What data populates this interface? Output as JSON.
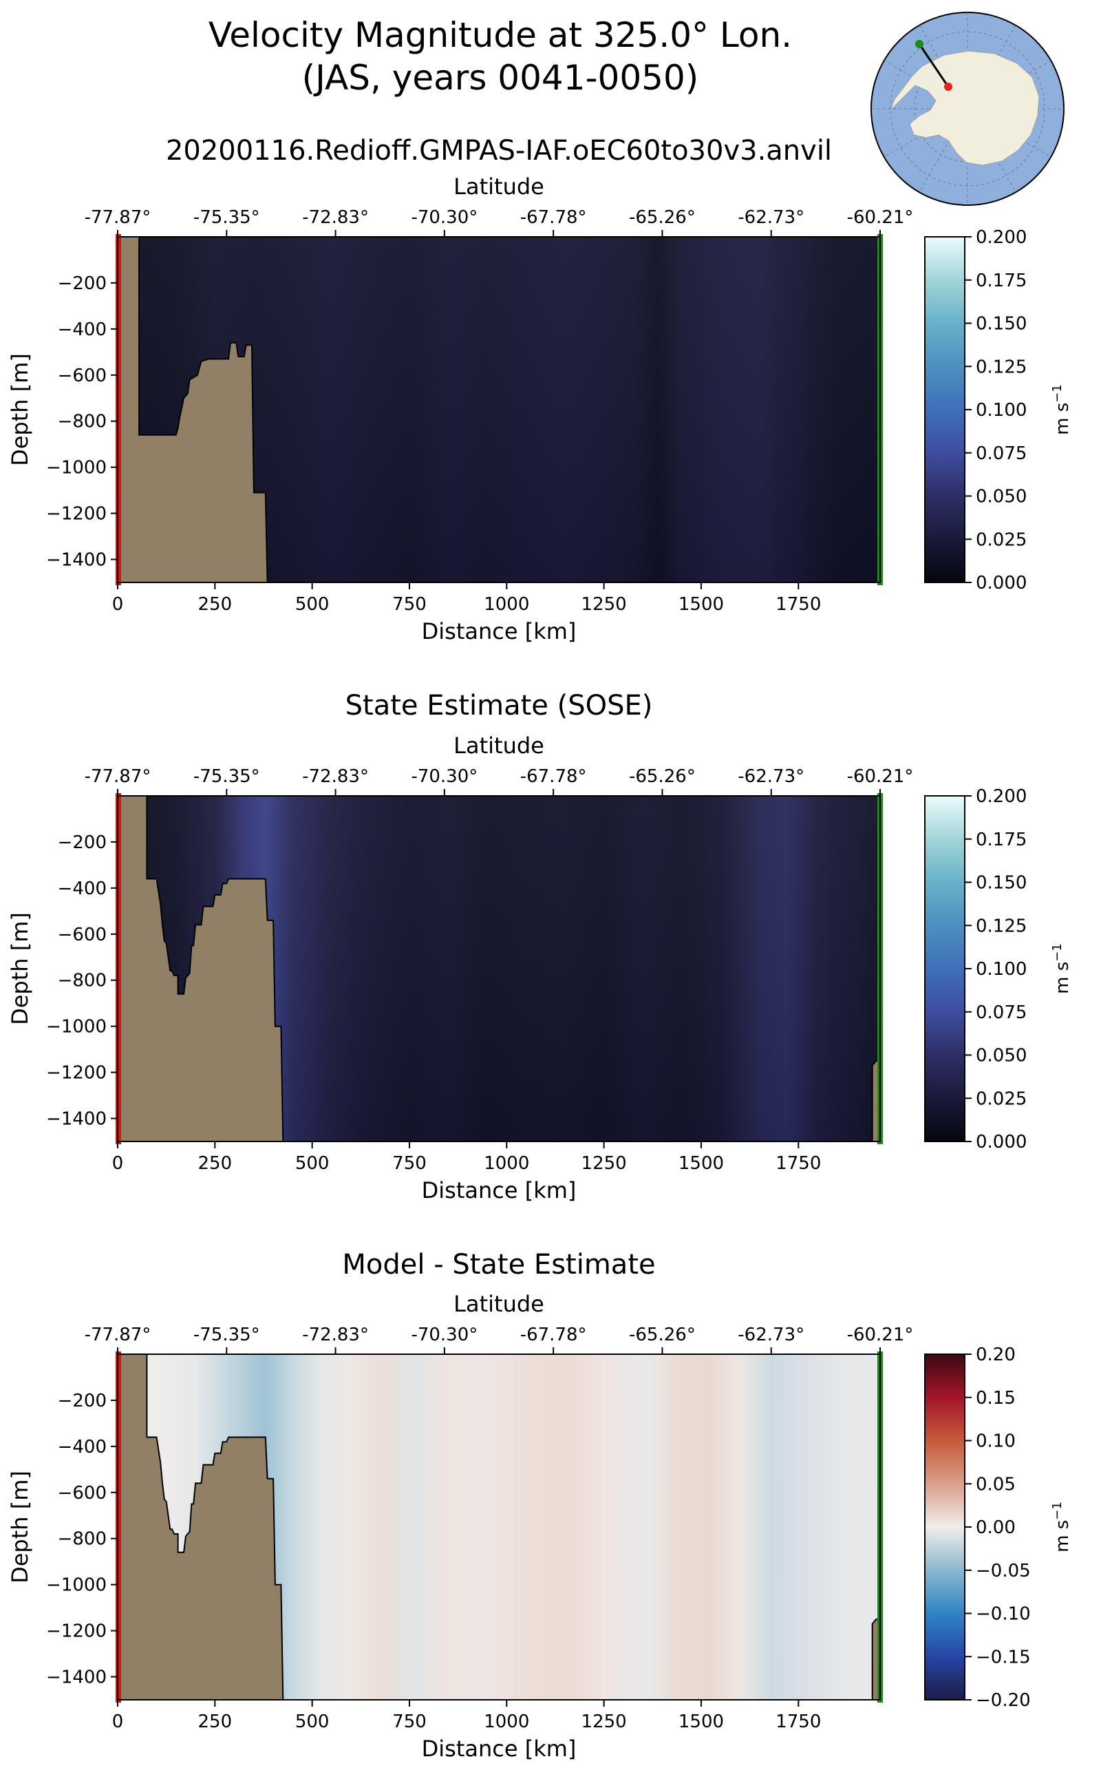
{
  "figure": {
    "title_line1": "Velocity Magnitude at 325.0° Lon.",
    "title_line2": "(JAS, years 0041-0050)"
  },
  "inset_map": {
    "description_colors": {
      "ocean": "#8fb0dd",
      "land": "#f1eede",
      "track": "#000000",
      "start": "#e8201e",
      "end": "#1a8a1a"
    }
  },
  "chart_data": [
    {
      "type": "heatmap",
      "title": "20200116.Redioff.GMPAS-IAF.oEC60to30v3.anvil",
      "xlabel": "Distance [km]",
      "ylabel": "Depth [m]",
      "top_xlabel": "Latitude",
      "xlim": [
        0,
        1960
      ],
      "ylim": [
        -1500,
        0
      ],
      "x_ticks": [
        0,
        250,
        500,
        750,
        1000,
        1250,
        1500,
        1750
      ],
      "y_ticks": [
        -200,
        -400,
        -600,
        -800,
        -1000,
        -1200,
        -1400
      ],
      "top_ticks": [
        "-77.87°",
        "-75.35°",
        "-72.83°",
        "-70.30°",
        "-67.78°",
        "-65.26°",
        "-62.73°",
        "-60.21°"
      ],
      "colorbar": {
        "label": "m s$^{-1}$",
        "min": 0.0,
        "max": 0.2,
        "ticks": [
          "0.000",
          "0.025",
          "0.050",
          "0.075",
          "0.100",
          "0.125",
          "0.150",
          "0.175",
          "0.200"
        ],
        "colormap": "ice"
      },
      "bathymetry": [
        [
          0,
          0
        ],
        [
          55,
          0
        ],
        [
          55,
          -860
        ],
        [
          150,
          -860
        ],
        [
          155,
          -830
        ],
        [
          160,
          -780
        ],
        [
          170,
          -700
        ],
        [
          180,
          -680
        ],
        [
          185,
          -620
        ],
        [
          205,
          -600
        ],
        [
          215,
          -540
        ],
        [
          235,
          -530
        ],
        [
          285,
          -530
        ],
        [
          290,
          -460
        ],
        [
          305,
          -460
        ],
        [
          310,
          -520
        ],
        [
          325,
          -520
        ],
        [
          330,
          -470
        ],
        [
          345,
          -470
        ],
        [
          350,
          -1110
        ],
        [
          380,
          -1110
        ],
        [
          385,
          -1500
        ],
        [
          0,
          -1500
        ]
      ],
      "field_columns": [
        {
          "x": 55,
          "v": 0.012
        },
        {
          "x": 150,
          "v": 0.014
        },
        {
          "x": 250,
          "v": 0.02
        },
        {
          "x": 350,
          "v": 0.018
        },
        {
          "x": 450,
          "v": 0.02
        },
        {
          "x": 550,
          "v": 0.024
        },
        {
          "x": 650,
          "v": 0.02
        },
        {
          "x": 750,
          "v": 0.018
        },
        {
          "x": 850,
          "v": 0.022
        },
        {
          "x": 950,
          "v": 0.02
        },
        {
          "x": 1050,
          "v": 0.023
        },
        {
          "x": 1150,
          "v": 0.025
        },
        {
          "x": 1250,
          "v": 0.022
        },
        {
          "x": 1330,
          "v": 0.02
        },
        {
          "x": 1390,
          "v": 0.012
        },
        {
          "x": 1450,
          "v": 0.024
        },
        {
          "x": 1550,
          "v": 0.028
        },
        {
          "x": 1650,
          "v": 0.03
        },
        {
          "x": 1750,
          "v": 0.022
        },
        {
          "x": 1850,
          "v": 0.014
        },
        {
          "x": 1960,
          "v": 0.012
        }
      ]
    },
    {
      "type": "heatmap",
      "title": "State Estimate (SOSE)",
      "xlabel": "Distance [km]",
      "ylabel": "Depth [m]",
      "top_xlabel": "Latitude",
      "xlim": [
        0,
        1960
      ],
      "ylim": [
        -1500,
        0
      ],
      "x_ticks": [
        0,
        250,
        500,
        750,
        1000,
        1250,
        1500,
        1750
      ],
      "y_ticks": [
        -200,
        -400,
        -600,
        -800,
        -1000,
        -1200,
        -1400
      ],
      "top_ticks": [
        "-77.87°",
        "-75.35°",
        "-72.83°",
        "-70.30°",
        "-67.78°",
        "-65.26°",
        "-62.73°",
        "-60.21°"
      ],
      "colorbar": {
        "label": "m s$^{-1}$",
        "min": 0.0,
        "max": 0.2,
        "ticks": [
          "0.000",
          "0.025",
          "0.050",
          "0.075",
          "0.100",
          "0.125",
          "0.150",
          "0.175",
          "0.200"
        ],
        "colormap": "ice"
      },
      "bathymetry": [
        [
          0,
          0
        ],
        [
          75,
          0
        ],
        [
          75,
          -360
        ],
        [
          100,
          -360
        ],
        [
          110,
          -470
        ],
        [
          115,
          -560
        ],
        [
          120,
          -630
        ],
        [
          125,
          -640
        ],
        [
          130,
          -700
        ],
        [
          135,
          -760
        ],
        [
          140,
          -760
        ],
        [
          145,
          -780
        ],
        [
          155,
          -780
        ],
        [
          155,
          -860
        ],
        [
          170,
          -860
        ],
        [
          175,
          -790
        ],
        [
          185,
          -770
        ],
        [
          190,
          -650
        ],
        [
          195,
          -650
        ],
        [
          200,
          -560
        ],
        [
          215,
          -560
        ],
        [
          220,
          -480
        ],
        [
          245,
          -480
        ],
        [
          250,
          -430
        ],
        [
          265,
          -430
        ],
        [
          270,
          -380
        ],
        [
          280,
          -380
        ],
        [
          285,
          -360
        ],
        [
          380,
          -360
        ],
        [
          385,
          -540
        ],
        [
          400,
          -540
        ],
        [
          405,
          -1000
        ],
        [
          420,
          -1000
        ],
        [
          425,
          -1500
        ],
        [
          0,
          -1500
        ]
      ],
      "bathymetry_right": [
        [
          1940,
          -1500
        ],
        [
          1940,
          -1170
        ],
        [
          1950,
          -1150
        ],
        [
          1960,
          -1150
        ],
        [
          1960,
          -1500
        ]
      ],
      "field_columns": [
        {
          "x": 75,
          "v": 0.012
        },
        {
          "x": 150,
          "v": 0.016
        },
        {
          "x": 250,
          "v": 0.03
        },
        {
          "x": 320,
          "v": 0.055
        },
        {
          "x": 380,
          "v": 0.065
        },
        {
          "x": 450,
          "v": 0.045
        },
        {
          "x": 550,
          "v": 0.03
        },
        {
          "x": 650,
          "v": 0.022
        },
        {
          "x": 750,
          "v": 0.018
        },
        {
          "x": 850,
          "v": 0.02
        },
        {
          "x": 950,
          "v": 0.015
        },
        {
          "x": 1050,
          "v": 0.017
        },
        {
          "x": 1150,
          "v": 0.018
        },
        {
          "x": 1250,
          "v": 0.015
        },
        {
          "x": 1350,
          "v": 0.02
        },
        {
          "x": 1450,
          "v": 0.017
        },
        {
          "x": 1550,
          "v": 0.022
        },
        {
          "x": 1650,
          "v": 0.04
        },
        {
          "x": 1720,
          "v": 0.045
        },
        {
          "x": 1800,
          "v": 0.028
        },
        {
          "x": 1900,
          "v": 0.02
        },
        {
          "x": 1960,
          "v": 0.015
        }
      ]
    },
    {
      "type": "heatmap",
      "title": "Model - State Estimate",
      "xlabel": "Distance [km]",
      "ylabel": "Depth [m]",
      "top_xlabel": "Latitude",
      "xlim": [
        0,
        1960
      ],
      "ylim": [
        -1500,
        0
      ],
      "x_ticks": [
        0,
        250,
        500,
        750,
        1000,
        1250,
        1500,
        1750
      ],
      "y_ticks": [
        -200,
        -400,
        -600,
        -800,
        -1000,
        -1200,
        -1400
      ],
      "top_ticks": [
        "-77.87°",
        "-75.35°",
        "-72.83°",
        "-70.30°",
        "-67.78°",
        "-65.26°",
        "-62.73°",
        "-60.21°"
      ],
      "colorbar": {
        "label": "m s$^{-1}$",
        "min": -0.2,
        "max": 0.2,
        "ticks": [
          "−0.20",
          "−0.15",
          "−0.10",
          "−0.05",
          "0.00",
          "0.05",
          "0.10",
          "0.15",
          "0.20"
        ],
        "colormap": "balance"
      },
      "bathymetry": [
        [
          0,
          0
        ],
        [
          75,
          0
        ],
        [
          75,
          -360
        ],
        [
          100,
          -360
        ],
        [
          110,
          -470
        ],
        [
          115,
          -560
        ],
        [
          120,
          -630
        ],
        [
          125,
          -640
        ],
        [
          130,
          -700
        ],
        [
          135,
          -760
        ],
        [
          140,
          -760
        ],
        [
          145,
          -780
        ],
        [
          155,
          -780
        ],
        [
          155,
          -860
        ],
        [
          170,
          -860
        ],
        [
          175,
          -790
        ],
        [
          185,
          -770
        ],
        [
          190,
          -650
        ],
        [
          195,
          -650
        ],
        [
          200,
          -560
        ],
        [
          215,
          -560
        ],
        [
          220,
          -480
        ],
        [
          245,
          -480
        ],
        [
          250,
          -430
        ],
        [
          265,
          -430
        ],
        [
          270,
          -380
        ],
        [
          280,
          -380
        ],
        [
          285,
          -360
        ],
        [
          380,
          -360
        ],
        [
          385,
          -540
        ],
        [
          400,
          -540
        ],
        [
          405,
          -1000
        ],
        [
          420,
          -1000
        ],
        [
          425,
          -1500
        ],
        [
          0,
          -1500
        ]
      ],
      "bathymetry_right": [
        [
          1940,
          -1500
        ],
        [
          1940,
          -1170
        ],
        [
          1950,
          -1150
        ],
        [
          1960,
          -1150
        ],
        [
          1960,
          -1500
        ]
      ],
      "field_columns": [
        {
          "x": 75,
          "v": 0.0
        },
        {
          "x": 200,
          "v": -0.005
        },
        {
          "x": 300,
          "v": -0.025
        },
        {
          "x": 380,
          "v": -0.04
        },
        {
          "x": 450,
          "v": -0.02
        },
        {
          "x": 520,
          "v": -0.006
        },
        {
          "x": 600,
          "v": 0.004
        },
        {
          "x": 680,
          "v": 0.01
        },
        {
          "x": 760,
          "v": -0.008
        },
        {
          "x": 850,
          "v": 0.006
        },
        {
          "x": 950,
          "v": 0.004
        },
        {
          "x": 1050,
          "v": 0.01
        },
        {
          "x": 1150,
          "v": 0.012
        },
        {
          "x": 1250,
          "v": 0.006
        },
        {
          "x": 1350,
          "v": -0.004
        },
        {
          "x": 1450,
          "v": 0.012
        },
        {
          "x": 1520,
          "v": 0.014
        },
        {
          "x": 1600,
          "v": 0.004
        },
        {
          "x": 1680,
          "v": -0.018
        },
        {
          "x": 1760,
          "v": -0.012
        },
        {
          "x": 1850,
          "v": -0.006
        },
        {
          "x": 1960,
          "v": -0.004
        }
      ]
    }
  ]
}
